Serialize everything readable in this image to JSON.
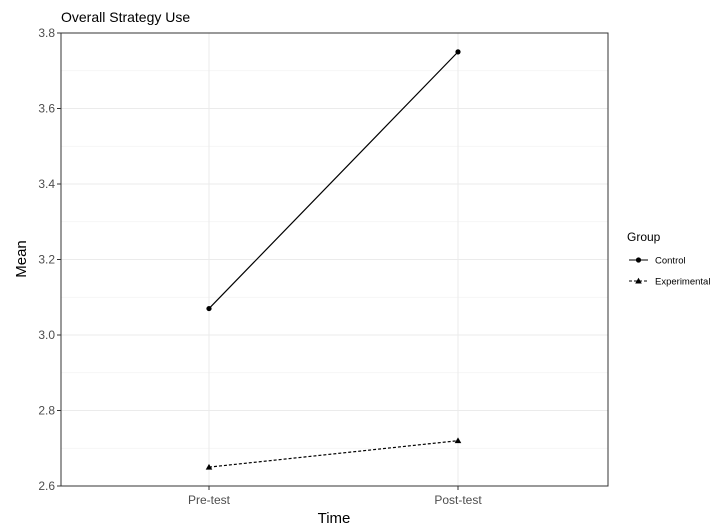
{
  "chart_data": {
    "type": "line",
    "title": "Overall Strategy Use",
    "xlabel": "Time",
    "ylabel": "Mean",
    "categories": [
      "Pre-test",
      "Post-test"
    ],
    "ylim": [
      2.6,
      3.8
    ],
    "yticks": [
      2.6,
      2.8,
      3.0,
      3.2,
      3.4,
      3.6,
      3.8
    ],
    "ytick_labels": [
      "2.6",
      "2.8",
      "3.0",
      "3.2",
      "3.4",
      "3.6",
      "3.8"
    ],
    "grid": true,
    "legend": {
      "title": "Group",
      "position": "right"
    },
    "series": [
      {
        "name": "Control",
        "values": [
          3.07,
          3.75
        ],
        "marker": "circle",
        "linestyle": "solid",
        "color": "#000000"
      },
      {
        "name": "Experimental",
        "values": [
          2.65,
          2.72
        ],
        "marker": "triangle",
        "linestyle": "dashed",
        "color": "#000000"
      }
    ]
  }
}
